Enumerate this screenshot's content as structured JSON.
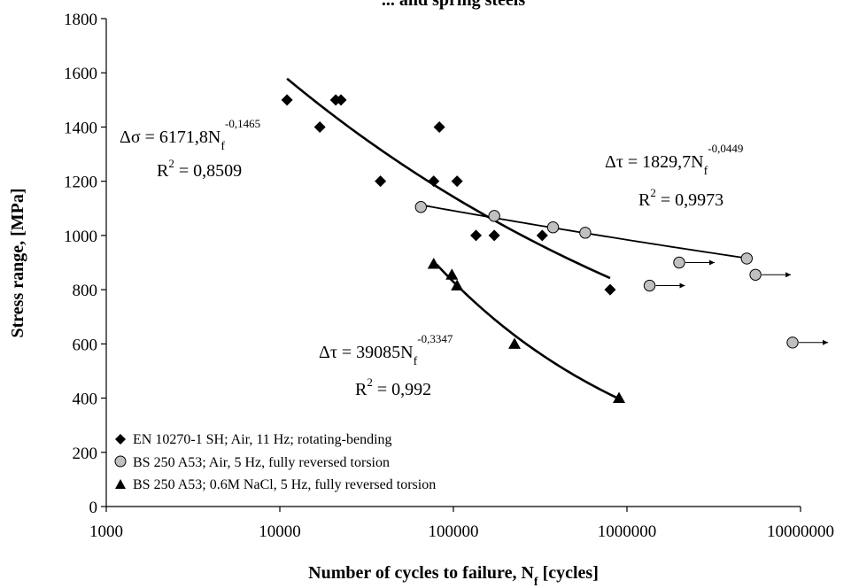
{
  "chart_data": {
    "type": "scatter",
    "title": "... and spring steels",
    "xlabel": "Number of cycles to failure, N",
    "xlabel_sub": "f",
    "xlabel_suffix": " [cycles]",
    "ylabel": "Stress range, [MPa]",
    "x_scale": "log",
    "xlim": [
      1000,
      10000000
    ],
    "ylim": [
      0,
      1800
    ],
    "x_ticks": [
      1000,
      10000,
      100000,
      1000000,
      10000000
    ],
    "x_tick_labels": [
      "1000",
      "10000",
      "100000",
      "1000000",
      "10000000"
    ],
    "y_ticks": [
      0,
      200,
      400,
      600,
      800,
      1000,
      1200,
      1400,
      1600,
      1800
    ],
    "y_tick_labels": [
      "0",
      "200",
      "400",
      "600",
      "800",
      "1000",
      "1200",
      "1400",
      "1600",
      "1800"
    ],
    "grid": false,
    "legend_position": "bottom-left",
    "series": [
      {
        "name": "EN 10270-1 SH; Air, 11 Hz; rotating-bending",
        "marker": "diamond",
        "color": "#000000",
        "points": [
          [
            11000,
            1500
          ],
          [
            17000,
            1400
          ],
          [
            21000,
            1500
          ],
          [
            22500,
            1500
          ],
          [
            38000,
            1200
          ],
          [
            77000,
            1200
          ],
          [
            83000,
            1400
          ],
          [
            105000,
            1200
          ],
          [
            135000,
            1000
          ],
          [
            172000,
            1000
          ],
          [
            325000,
            1000
          ],
          [
            800000,
            800
          ]
        ],
        "fit": {
          "form": "power",
          "coef": 6171.8,
          "exp": -0.1465,
          "x_range": [
            11000,
            800000
          ],
          "eq_lhs": "Δσ = 6171,8N",
          "eq_sub": "f",
          "eq_sup": "-0,1465",
          "r2_label": "R",
          "r2_sup": "2",
          "r2_value": " = 0,8509"
        }
      },
      {
        "name": "BS 250 A53; Air, 5 Hz, fully reversed torsion",
        "marker": "circle",
        "color": "#c0c0c0",
        "points": [
          [
            65000,
            1105
          ],
          [
            172000,
            1072
          ],
          [
            375000,
            1030
          ],
          [
            575000,
            1010
          ],
          [
            4900000,
            915
          ]
        ],
        "runouts": [
          [
            1350000,
            815
          ],
          [
            2000000,
            900
          ],
          [
            5500000,
            855
          ],
          [
            9000000,
            605
          ]
        ],
        "fit": {
          "form": "power",
          "coef": 1829.7,
          "exp": -0.0449,
          "x_range": [
            65000,
            4900000
          ],
          "eq_lhs": "Δτ = 1829,7N",
          "eq_sub": "f",
          "eq_sup": "-0,0449",
          "r2_label": "R",
          "r2_sup": "2",
          "r2_value": " = 0,9973"
        }
      },
      {
        "name": "BS 250 A53; 0.6M NaCl, 5 Hz, fully reversed torsion",
        "marker": "triangle",
        "color": "#000000",
        "points": [
          [
            77000,
            895
          ],
          [
            98000,
            855
          ],
          [
            105000,
            815
          ],
          [
            225000,
            600
          ],
          [
            900000,
            400
          ]
        ],
        "fit": {
          "form": "power",
          "coef": 39085,
          "exp": -0.3347,
          "x_range": [
            80000,
            900000
          ],
          "eq_lhs": "Δτ = 39085N",
          "eq_sub": "f",
          "eq_sup": "-0,3347",
          "r2_label": "R",
          "r2_sup": "2",
          "r2_value": " = 0,992"
        }
      }
    ]
  }
}
